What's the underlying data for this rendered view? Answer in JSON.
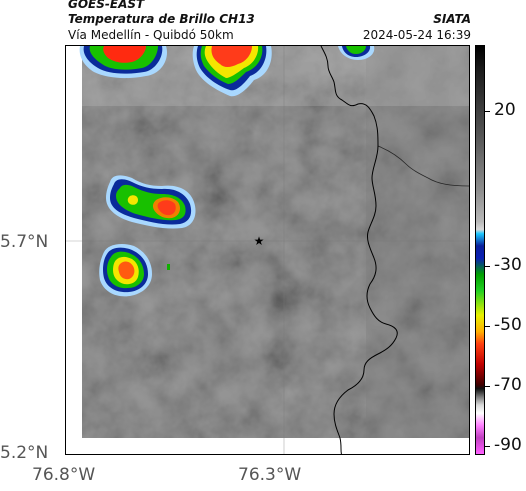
{
  "header": {
    "satellite": "GOES-EAST",
    "product": "Temperatura de Brillo CH13",
    "agency": "SIATA",
    "route": "Vía Medellín - Quibdó 50km",
    "datetime": "2024-05-24 16:39"
  },
  "map": {
    "lat_labels": [
      "5.7°N",
      "5.2°N"
    ],
    "lon_labels": [
      "76.8°W",
      "76.3°W"
    ],
    "marker": "star-icon",
    "colors": {
      "background_gray": "#8a8a8a",
      "cloud_cold": "#ff3b1a",
      "cloud_mid": "#f5f000",
      "cloud_edge": "#00b000",
      "cloud_outline": "#0a1f9a",
      "border_line": "#000000"
    }
  },
  "colorbar": {
    "labels": [
      "20",
      "-30",
      "-50",
      "-70",
      "-90"
    ],
    "unit_values": [
      20,
      -30,
      -50,
      -70,
      -90
    ]
  }
}
